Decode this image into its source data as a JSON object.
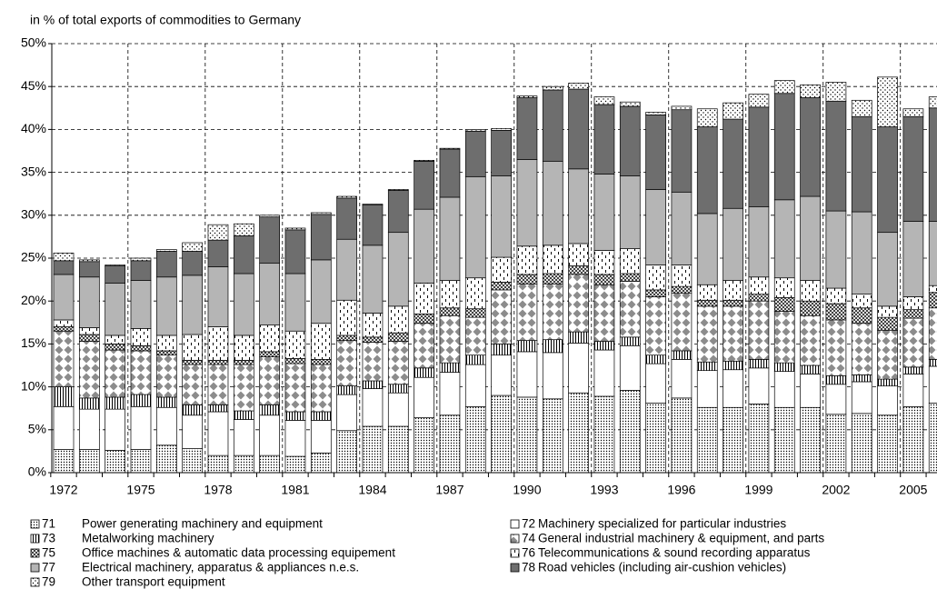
{
  "chart_data": {
    "type": "stacked_bar",
    "ylabel": "in % of total exports of commodities to Germany",
    "categories": [
      "1972",
      null,
      null,
      "1975",
      null,
      null,
      "1978",
      null,
      null,
      "1981",
      null,
      null,
      "1984",
      null,
      null,
      "1987",
      null,
      null,
      "1990",
      null,
      null,
      "1993",
      null,
      null,
      "1996",
      null,
      null,
      "1999",
      null,
      null,
      "2002",
      null,
      null,
      "2005",
      null
    ],
    "ylim": [
      0,
      50
    ],
    "yticks": [
      {
        "value": 0,
        "label": "0%"
      },
      {
        "value": 5,
        "label": "5%"
      },
      {
        "value": 10,
        "label": "10%"
      },
      {
        "value": 15,
        "label": "15%"
      },
      {
        "value": 20,
        "label": "20%"
      },
      {
        "value": 25,
        "label": "25%"
      },
      {
        "value": 30,
        "label": "30%"
      },
      {
        "value": 35,
        "label": "35%"
      },
      {
        "value": 40,
        "label": "40%"
      },
      {
        "value": 45,
        "label": "45%"
      },
      {
        "value": 50,
        "label": "50%"
      }
    ],
    "grid": true,
    "series": [
      {
        "code": "71",
        "name": "Power generating machinery and equipment",
        "color": "#ffffff",
        "pattern": "dots",
        "values": [
          2.7,
          2.7,
          2.6,
          2.7,
          3.2,
          2.8,
          2.0,
          2.0,
          2.0,
          1.9,
          2.3,
          4.9,
          5.4,
          5.4,
          6.4,
          6.7,
          7.7,
          9.0,
          8.8,
          8.6,
          9.3,
          8.9,
          9.6,
          8.1,
          8.7,
          7.6,
          7.6,
          8.0,
          7.6,
          7.6,
          6.8,
          6.9,
          6.7,
          7.7,
          8.1
        ]
      },
      {
        "code": "72",
        "name": "Machinery specialized for particular industries",
        "color": "#ffffff",
        "pattern": "none",
        "values": [
          5.0,
          4.7,
          4.8,
          5.0,
          4.4,
          3.9,
          5.1,
          4.2,
          4.7,
          4.2,
          3.8,
          4.2,
          4.4,
          3.9,
          4.7,
          5.0,
          4.9,
          4.7,
          5.3,
          5.4,
          5.8,
          5.4,
          5.2,
          4.6,
          4.5,
          4.3,
          4.4,
          4.2,
          4.2,
          3.9,
          3.5,
          3.7,
          3.4,
          3.8,
          4.3
        ]
      },
      {
        "code": "73",
        "name": "Metalworking machinery",
        "color": "#ffffff",
        "pattern": "vstripes",
        "values": [
          2.3,
          1.3,
          1.4,
          1.4,
          1.2,
          1.2,
          0.8,
          1.0,
          1.2,
          1.0,
          1.0,
          1.0,
          0.9,
          1.0,
          1.1,
          1.1,
          1.1,
          1.3,
          1.3,
          1.5,
          1.3,
          1.0,
          1.0,
          1.0,
          1.0,
          1.0,
          1.0,
          1.0,
          1.0,
          1.0,
          1.0,
          0.8,
          0.8,
          0.8,
          0.8
        ]
      },
      {
        "code": "74",
        "name": "General industrial machinery & equipment, and parts",
        "color": "#8c8c8c",
        "pattern": "diamonds",
        "values": [
          6.5,
          6.6,
          5.5,
          5.1,
          4.9,
          4.7,
          4.7,
          5.4,
          5.6,
          5.6,
          5.5,
          5.3,
          4.5,
          5.0,
          5.2,
          5.5,
          4.4,
          6.3,
          6.6,
          6.5,
          6.7,
          6.6,
          6.5,
          6.8,
          6.7,
          6.5,
          6.4,
          6.8,
          6.0,
          5.8,
          6.5,
          6.0,
          5.7,
          5.7,
          6.0
        ]
      },
      {
        "code": "75",
        "name": "Office machines & automatic data processing equipement",
        "color": "#000000",
        "pattern": "cross",
        "values": [
          0.5,
          0.8,
          0.7,
          0.6,
          0.5,
          0.5,
          0.5,
          0.5,
          0.6,
          0.6,
          0.6,
          0.6,
          0.6,
          1.0,
          1.1,
          0.9,
          1.0,
          0.9,
          1.1,
          1.2,
          1.0,
          1.2,
          0.9,
          0.8,
          0.8,
          0.7,
          0.7,
          0.8,
          1.6,
          1.7,
          1.9,
          1.8,
          1.5,
          1.0,
          1.8
        ]
      },
      {
        "code": "76",
        "name": "Telecommunications & sound recording apparatus",
        "color": "#000000",
        "pattern": "dashes",
        "values": [
          0.8,
          0.8,
          1.0,
          2.0,
          1.8,
          3.0,
          3.9,
          2.9,
          3.1,
          3.2,
          4.2,
          4.1,
          2.8,
          3.1,
          3.6,
          3.2,
          3.6,
          2.9,
          3.3,
          3.3,
          2.6,
          2.8,
          2.9,
          2.9,
          2.5,
          1.8,
          2.3,
          2.0,
          2.3,
          2.4,
          1.8,
          1.6,
          1.3,
          1.5,
          0.8
        ]
      },
      {
        "code": "77",
        "name": "Electrical machinery, apparatus & appliances n.e.s.",
        "color": "#b5b5b5",
        "pattern": "fill",
        "values": [
          5.3,
          5.9,
          6.1,
          5.6,
          6.8,
          6.9,
          7.0,
          7.2,
          7.2,
          6.7,
          7.4,
          7.1,
          7.9,
          8.6,
          8.6,
          9.7,
          11.8,
          9.5,
          10.1,
          9.8,
          8.7,
          8.9,
          8.5,
          8.8,
          8.5,
          8.3,
          8.4,
          8.2,
          9.1,
          9.8,
          9.0,
          9.6,
          8.6,
          8.8,
          7.5
        ]
      },
      {
        "code": "78",
        "name": "Road vehicles (including  air-cushion vehicles)",
        "color": "#6e6e6e",
        "pattern": "fill",
        "values": [
          1.6,
          1.8,
          2.0,
          2.3,
          3.0,
          2.8,
          3.1,
          4.4,
          5.4,
          5.1,
          5.3,
          4.8,
          4.7,
          4.9,
          5.6,
          5.6,
          5.3,
          5.3,
          7.2,
          8.3,
          9.3,
          8.1,
          8.1,
          8.7,
          9.6,
          10.1,
          10.4,
          11.6,
          12.4,
          11.5,
          12.8,
          11.1,
          12.3,
          12.2,
          13.2
        ]
      },
      {
        "code": "79",
        "name": "Other transport equipment",
        "color": "#ffffff",
        "pattern": "sparse",
        "values": [
          0.9,
          0.2,
          0.1,
          0.3,
          0.2,
          1.0,
          1.8,
          1.4,
          0.2,
          0.2,
          0.2,
          0.2,
          0.1,
          0.1,
          0.1,
          0.1,
          0.2,
          0.2,
          0.2,
          0.4,
          0.7,
          0.9,
          0.5,
          0.3,
          0.4,
          2.1,
          1.9,
          1.5,
          1.5,
          1.5,
          2.2,
          1.9,
          5.8,
          0.9,
          1.3
        ]
      }
    ]
  }
}
